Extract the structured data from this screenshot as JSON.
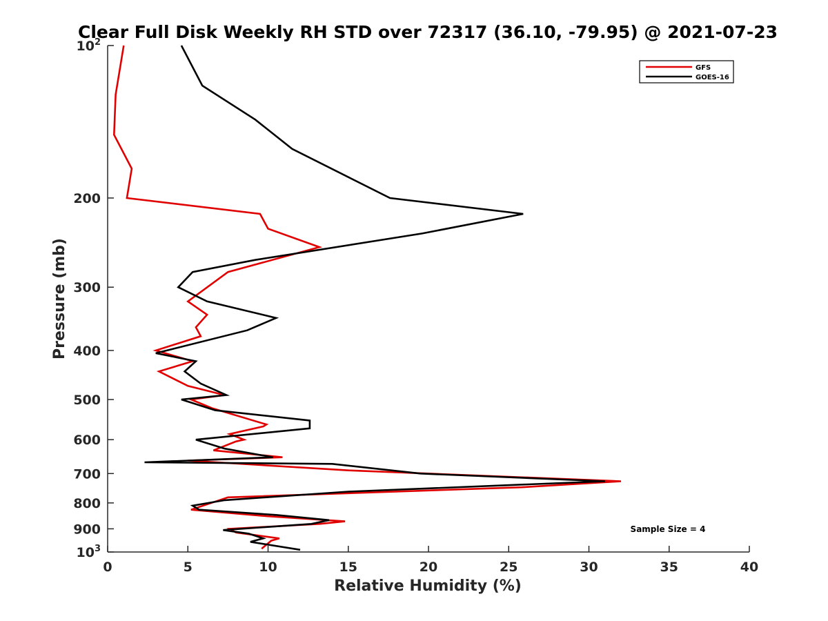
{
  "chart_data": {
    "type": "line",
    "title": "Clear Full Disk Weekly RH STD over 72317 (36.10, -79.95) @ 2021-07-23",
    "xlabel": "Relative Humidity (%)",
    "ylabel": "Pressure (mb)",
    "xlim": [
      0,
      40
    ],
    "ylim": [
      100,
      1000
    ],
    "yscale": "log",
    "y_reversed": true,
    "grid": false,
    "legend_position": "top-right",
    "x_ticks": [
      0,
      5,
      10,
      15,
      20,
      25,
      30,
      35,
      40
    ],
    "x_tick_labels": [
      "0",
      "5",
      "10",
      "15",
      "20",
      "25",
      "30",
      "35",
      "40"
    ],
    "y_ticks": [
      100,
      200,
      300,
      400,
      500,
      600,
      700,
      800,
      900,
      1000
    ],
    "y_tick_labels": [
      {
        "base": "10",
        "sup": "2"
      },
      {
        "base": "200",
        "sup": ""
      },
      {
        "base": "300",
        "sup": ""
      },
      {
        "base": "400",
        "sup": ""
      },
      {
        "base": "500",
        "sup": ""
      },
      {
        "base": "600",
        "sup": ""
      },
      {
        "base": "700",
        "sup": ""
      },
      {
        "base": "800",
        "sup": ""
      },
      {
        "base": "900",
        "sup": ""
      },
      {
        "base": "10",
        "sup": "3"
      }
    ],
    "annotation": "Sample Size = 4",
    "series": [
      {
        "name": "GFS",
        "color": "#e00000",
        "points": [
          [
            1.0,
            100
          ],
          [
            0.5,
            125
          ],
          [
            0.4,
            150
          ],
          [
            1.5,
            175
          ],
          [
            1.2,
            200
          ],
          [
            9.5,
            215
          ],
          [
            10.0,
            230
          ],
          [
            13.2,
            250
          ],
          [
            7.5,
            280
          ],
          [
            5.0,
            320
          ],
          [
            6.2,
            340
          ],
          [
            5.5,
            360
          ],
          [
            5.8,
            375
          ],
          [
            3.0,
            400
          ],
          [
            5.3,
            420
          ],
          [
            3.2,
            440
          ],
          [
            5.0,
            470
          ],
          [
            7.3,
            490
          ],
          [
            5.2,
            500
          ],
          [
            6.5,
            520
          ],
          [
            9.9,
            560
          ],
          [
            9.7,
            565
          ],
          [
            7.6,
            585
          ],
          [
            8.5,
            600
          ],
          [
            8.0,
            605
          ],
          [
            6.6,
            630
          ],
          [
            10.9,
            650
          ],
          [
            5.0,
            660
          ],
          [
            15.0,
            690
          ],
          [
            32.0,
            725
          ],
          [
            25.8,
            745
          ],
          [
            7.5,
            780
          ],
          [
            5.2,
            825
          ],
          [
            10.0,
            850
          ],
          [
            14.8,
            870
          ],
          [
            13.2,
            880
          ],
          [
            7.6,
            900
          ],
          [
            8.0,
            915
          ],
          [
            10.7,
            940
          ],
          [
            10.2,
            950
          ],
          [
            9.6,
            985
          ]
        ]
      },
      {
        "name": "GOES-16",
        "color": "#000000",
        "points": [
          [
            4.6,
            100
          ],
          [
            5.9,
            120
          ],
          [
            9.2,
            140
          ],
          [
            11.5,
            160
          ],
          [
            17.6,
            200
          ],
          [
            25.9,
            215
          ],
          [
            19.6,
            235
          ],
          [
            9.2,
            265
          ],
          [
            5.3,
            280
          ],
          [
            4.4,
            300
          ],
          [
            6.2,
            320
          ],
          [
            10.5,
            345
          ],
          [
            8.7,
            365
          ],
          [
            3.0,
            405
          ],
          [
            5.5,
            420
          ],
          [
            4.8,
            440
          ],
          [
            5.8,
            465
          ],
          [
            7.4,
            490
          ],
          [
            4.6,
            500
          ],
          [
            6.7,
            525
          ],
          [
            12.6,
            550
          ],
          [
            12.6,
            570
          ],
          [
            5.5,
            600
          ],
          [
            7.3,
            625
          ],
          [
            10.3,
            650
          ],
          [
            2.3,
            665
          ],
          [
            14.0,
            670
          ],
          [
            19.5,
            700
          ],
          [
            31.0,
            725
          ],
          [
            15.0,
            760
          ],
          [
            7.3,
            790
          ],
          [
            5.3,
            810
          ],
          [
            5.7,
            825
          ],
          [
            10.5,
            845
          ],
          [
            13.8,
            865
          ],
          [
            12.7,
            880
          ],
          [
            7.2,
            905
          ],
          [
            8.8,
            920
          ],
          [
            9.7,
            940
          ],
          [
            8.9,
            955
          ],
          [
            12.0,
            990
          ]
        ]
      }
    ]
  }
}
